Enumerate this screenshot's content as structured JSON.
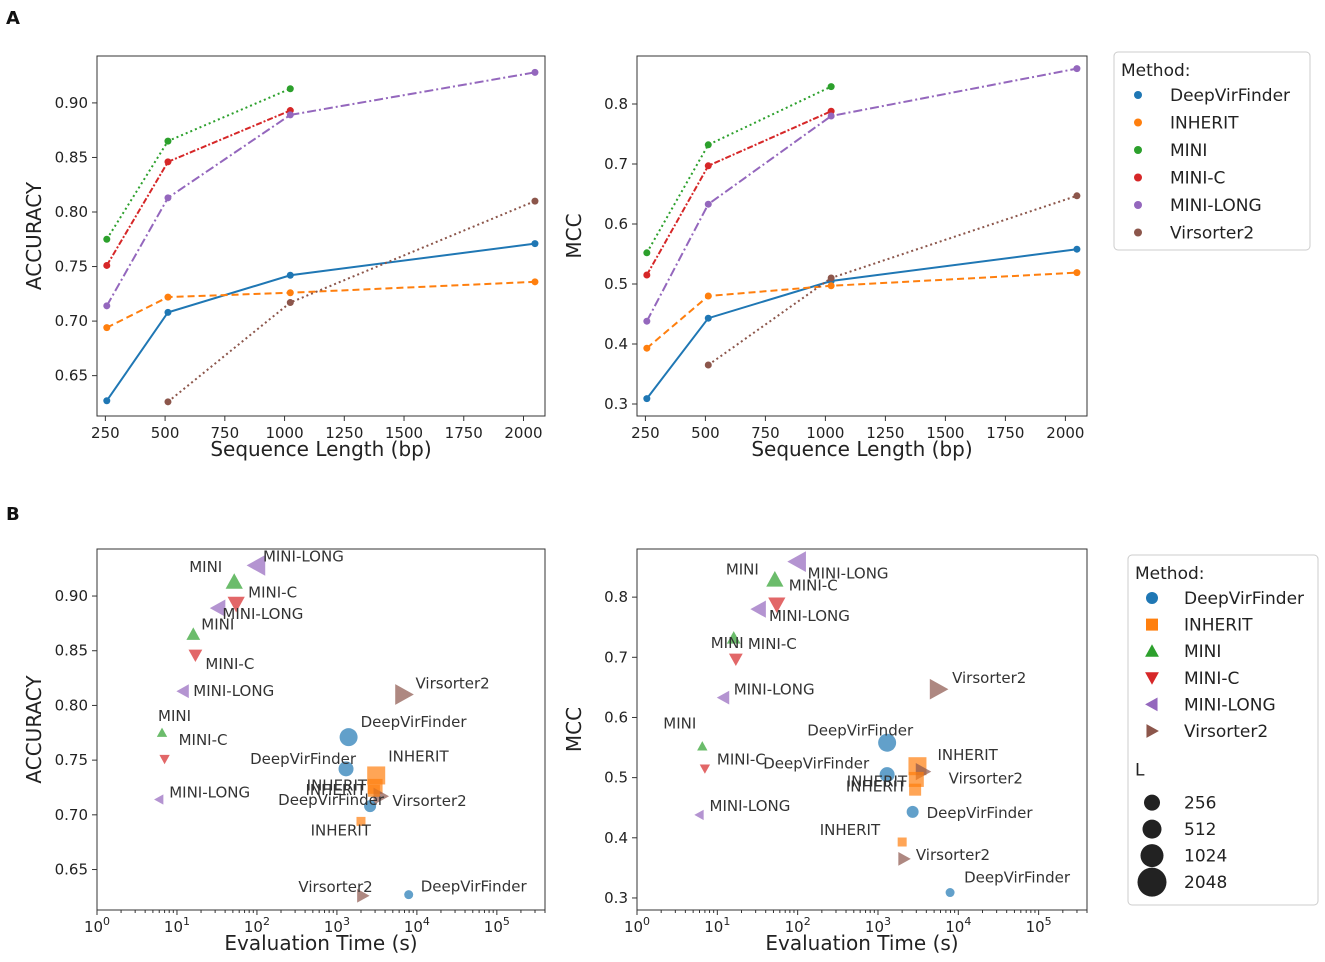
{
  "panels": {
    "a": "A",
    "b": "B"
  },
  "colors": {
    "DeepVirFinder": "#1f77b4",
    "INHERIT": "#ff7f0e",
    "MINI": "#2ca02c",
    "MINI-C": "#d62728",
    "MINI-LONG": "#9467bd",
    "Virsorter2": "#8c564b"
  },
  "legend": {
    "title": "Method:",
    "methods": [
      "DeepVirFinder",
      "INHERIT",
      "MINI",
      "MINI-C",
      "MINI-LONG",
      "Virsorter2"
    ],
    "size_title": "L",
    "sizes": [
      "256",
      "512",
      "1024",
      "2048"
    ]
  },
  "chart_data": [
    {
      "id": "A-accuracy",
      "type": "line",
      "xlabel": "Sequence Length (bp)",
      "ylabel": "ACCURACY",
      "xlim": [
        215,
        2090
      ],
      "ylim": [
        0.613,
        0.943
      ],
      "xticks": [
        250,
        500,
        750,
        1000,
        1250,
        1500,
        1750,
        2000
      ],
      "yticks": [
        0.65,
        0.7,
        0.75,
        0.8,
        0.85,
        0.9
      ],
      "series": [
        {
          "name": "DeepVirFinder",
          "x": [
            256,
            512,
            1024,
            2048
          ],
          "y": [
            0.627,
            0.708,
            0.742,
            0.771
          ]
        },
        {
          "name": "INHERIT",
          "x": [
            256,
            512,
            1024,
            2048
          ],
          "y": [
            0.694,
            0.722,
            0.726,
            0.736
          ]
        },
        {
          "name": "MINI",
          "x": [
            256,
            512,
            1024
          ],
          "y": [
            0.775,
            0.865,
            0.913
          ]
        },
        {
          "name": "MINI-C",
          "x": [
            256,
            512,
            1024
          ],
          "y": [
            0.751,
            0.846,
            0.893
          ]
        },
        {
          "name": "MINI-LONG",
          "x": [
            256,
            512,
            1024,
            2048
          ],
          "y": [
            0.714,
            0.813,
            0.889,
            0.928
          ]
        },
        {
          "name": "Virsorter2",
          "x": [
            512,
            1024,
            2048
          ],
          "y": [
            0.626,
            0.717,
            0.81
          ]
        }
      ]
    },
    {
      "id": "A-mcc",
      "type": "line",
      "xlabel": "Sequence Length (bp)",
      "ylabel": "MCC",
      "xlim": [
        215,
        2090
      ],
      "ylim": [
        0.28,
        0.88
      ],
      "xticks": [
        250,
        500,
        750,
        1000,
        1250,
        1500,
        1750,
        2000
      ],
      "yticks": [
        0.3,
        0.4,
        0.5,
        0.6,
        0.7,
        0.8
      ],
      "series": [
        {
          "name": "DeepVirFinder",
          "x": [
            256,
            512,
            1024,
            2048
          ],
          "y": [
            0.309,
            0.443,
            0.505,
            0.558
          ]
        },
        {
          "name": "INHERIT",
          "x": [
            256,
            512,
            1024,
            2048
          ],
          "y": [
            0.393,
            0.48,
            0.497,
            0.519
          ]
        },
        {
          "name": "MINI",
          "x": [
            256,
            512,
            1024
          ],
          "y": [
            0.552,
            0.732,
            0.829
          ]
        },
        {
          "name": "MINI-C",
          "x": [
            256,
            512,
            1024
          ],
          "y": [
            0.515,
            0.697,
            0.788
          ]
        },
        {
          "name": "MINI-LONG",
          "x": [
            256,
            512,
            1024,
            2048
          ],
          "y": [
            0.438,
            0.633,
            0.78,
            0.859
          ]
        },
        {
          "name": "Virsorter2",
          "x": [
            512,
            1024,
            2048
          ],
          "y": [
            0.365,
            0.51,
            0.647
          ]
        }
      ]
    },
    {
      "id": "B-accuracy",
      "type": "scatter",
      "xscale": "log",
      "xlabel": "Evaluation Time (s)",
      "ylabel": "ACCURACY",
      "xlim": [
        1,
        400000
      ],
      "ylim": [
        0.613,
        0.943
      ],
      "xticks": [
        [
          "0",
          1
        ],
        [
          "1",
          10
        ],
        [
          "2",
          100
        ],
        [
          "3",
          1000
        ],
        [
          "4",
          10000
        ],
        [
          "5",
          100000
        ]
      ],
      "yticks": [
        0.65,
        0.7,
        0.75,
        0.8,
        0.85,
        0.9
      ],
      "points": [
        {
          "method": "MINI-LONG",
          "L": 2048,
          "t": 100,
          "y": 0.928,
          "label": "MINI-LONG"
        },
        {
          "method": "MINI",
          "L": 1024,
          "t": 52,
          "y": 0.913,
          "label": "MINI"
        },
        {
          "method": "MINI-C",
          "L": 1024,
          "t": 55,
          "y": 0.893,
          "label": "MINI-C"
        },
        {
          "method": "MINI-LONG",
          "L": 1024,
          "t": 33,
          "y": 0.889,
          "label": "MINI-LONG"
        },
        {
          "method": "MINI",
          "L": 512,
          "t": 16,
          "y": 0.865,
          "label": "MINI"
        },
        {
          "method": "MINI-C",
          "L": 512,
          "t": 17,
          "y": 0.846,
          "label": "MINI-C"
        },
        {
          "method": "MINI-LONG",
          "L": 512,
          "t": 12,
          "y": 0.813,
          "label": "MINI-LONG"
        },
        {
          "method": "MINI",
          "L": 256,
          "t": 6.5,
          "y": 0.775,
          "label": "MINI"
        },
        {
          "method": "MINI-C",
          "L": 256,
          "t": 7,
          "y": 0.751,
          "label": "MINI-C"
        },
        {
          "method": "MINI-LONG",
          "L": 256,
          "t": 6,
          "y": 0.714,
          "label": "MINI-LONG"
        },
        {
          "method": "Virsorter2",
          "L": 2048,
          "t": 6800,
          "y": 0.81,
          "label": "Virsorter2"
        },
        {
          "method": "DeepVirFinder",
          "L": 2048,
          "t": 1400,
          "y": 0.771,
          "label": "DeepVirFinder"
        },
        {
          "method": "DeepVirFinder",
          "L": 1024,
          "t": 1300,
          "y": 0.742,
          "label": "DeepVirFinder"
        },
        {
          "method": "INHERIT",
          "L": 2048,
          "t": 3100,
          "y": 0.736,
          "label": "INHERIT"
        },
        {
          "method": "INHERIT",
          "L": 1024,
          "t": 3000,
          "y": 0.726,
          "label": "INHERIT"
        },
        {
          "method": "Virsorter2",
          "L": 1024,
          "t": 3500,
          "y": 0.717,
          "label": "Virsorter2"
        },
        {
          "method": "DeepVirFinder",
          "L": 512,
          "t": 2600,
          "y": 0.708,
          "label": "DeepVirFinder"
        },
        {
          "method": "INHERIT",
          "L": 512,
          "t": 2900,
          "y": 0.722,
          "label": "INHERIT"
        },
        {
          "method": "INHERIT",
          "L": 256,
          "t": 2000,
          "y": 0.694,
          "label": "INHERIT"
        },
        {
          "method": "Virsorter2",
          "L": 512,
          "t": 2100,
          "y": 0.626,
          "label": "Virsorter2"
        },
        {
          "method": "DeepVirFinder",
          "L": 256,
          "t": 7900,
          "y": 0.627,
          "label": "DeepVirFinder"
        }
      ]
    },
    {
      "id": "B-mcc",
      "type": "scatter",
      "xscale": "log",
      "xlabel": "Evaluation Time (s)",
      "ylabel": "MCC",
      "xlim": [
        1,
        400000
      ],
      "ylim": [
        0.28,
        0.88
      ],
      "xticks": [
        [
          "0",
          1
        ],
        [
          "1",
          10
        ],
        [
          "2",
          100
        ],
        [
          "3",
          1000
        ],
        [
          "4",
          10000
        ],
        [
          "5",
          100000
        ]
      ],
      "yticks": [
        0.3,
        0.4,
        0.5,
        0.6,
        0.7,
        0.8
      ],
      "points": [
        {
          "method": "MINI-LONG",
          "L": 2048,
          "t": 100,
          "y": 0.859,
          "label": "MINI-LONG"
        },
        {
          "method": "MINI",
          "L": 1024,
          "t": 52,
          "y": 0.829,
          "label": "MINI"
        },
        {
          "method": "MINI-C",
          "L": 1024,
          "t": 55,
          "y": 0.788,
          "label": "MINI-C"
        },
        {
          "method": "MINI-LONG",
          "L": 1024,
          "t": 33,
          "y": 0.78,
          "label": "MINI-LONG"
        },
        {
          "method": "MINI",
          "L": 512,
          "t": 16,
          "y": 0.732,
          "label": "MINI"
        },
        {
          "method": "MINI-C",
          "L": 512,
          "t": 17,
          "y": 0.697,
          "label": "MINI-C"
        },
        {
          "method": "MINI-LONG",
          "L": 512,
          "t": 12,
          "y": 0.633,
          "label": "MINI-LONG"
        },
        {
          "method": "MINI",
          "L": 256,
          "t": 6.5,
          "y": 0.552,
          "label": "MINI"
        },
        {
          "method": "MINI-C",
          "L": 256,
          "t": 7,
          "y": 0.515,
          "label": "MINI-C"
        },
        {
          "method": "MINI-LONG",
          "L": 256,
          "t": 6,
          "y": 0.438,
          "label": "MINI-LONG"
        },
        {
          "method": "Virsorter2",
          "L": 2048,
          "t": 5600,
          "y": 0.647,
          "label": "Virsorter2"
        },
        {
          "method": "DeepVirFinder",
          "L": 2048,
          "t": 1300,
          "y": 0.558,
          "label": "DeepVirFinder"
        },
        {
          "method": "INHERIT",
          "L": 2048,
          "t": 3100,
          "y": 0.519,
          "label": "INHERIT"
        },
        {
          "method": "Virsorter2",
          "L": 1024,
          "t": 3600,
          "y": 0.51,
          "label": "Virsorter2"
        },
        {
          "method": "DeepVirFinder",
          "L": 1024,
          "t": 1300,
          "y": 0.505,
          "label": "DeepVirFinder"
        },
        {
          "method": "INHERIT",
          "L": 1024,
          "t": 3000,
          "y": 0.497,
          "label": "INHERIT"
        },
        {
          "method": "DeepVirFinder",
          "L": 512,
          "t": 2700,
          "y": 0.443,
          "label": "DeepVirFinder"
        },
        {
          "method": "INHERIT",
          "L": 512,
          "t": 2900,
          "y": 0.48,
          "label": "INHERIT"
        },
        {
          "method": "INHERIT",
          "L": 256,
          "t": 2000,
          "y": 0.393,
          "label": "INHERIT"
        },
        {
          "method": "Virsorter2",
          "L": 512,
          "t": 2100,
          "y": 0.365,
          "label": "Virsorter2"
        },
        {
          "method": "DeepVirFinder",
          "L": 256,
          "t": 7900,
          "y": 0.309,
          "label": "DeepVirFinder"
        }
      ]
    }
  ]
}
